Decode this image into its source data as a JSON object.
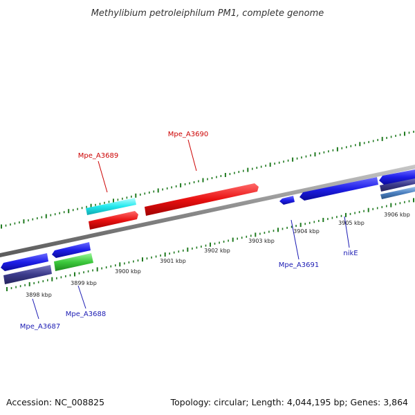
{
  "title": "Methylibium petroleiphilum PM1, complete genome",
  "footer": {
    "accession": "Accession: NC_008825",
    "summary": "Topology: circular; Length: 4,044,195 bp; Genes: 3,864"
  },
  "colors": {
    "backbone": "#8a8a8a",
    "tick": "#1f7a1f",
    "label_top": "#cc0000",
    "label_bottom": "#1a1ab3",
    "gene_red": "#e81010",
    "gene_cyan": "#22e8ee",
    "gene_blue": "#1e1ee8",
    "gene_green": "#3cc83c",
    "gene_slate": "#3b3a8a",
    "gene_steel": "#4a7fbf"
  },
  "scale": {
    "labels": [
      "3898 kbp",
      "3899 kbp",
      "3900 kbp",
      "3901 kbp",
      "3902 kbp",
      "3903 kbp",
      "3904 kbp",
      "3905 kbp",
      "3906 kbp"
    ]
  },
  "genes_top": [
    {
      "name": "Mpe_A3689"
    },
    {
      "name": "Mpe_A3690"
    }
  ],
  "genes_bottom": [
    {
      "name": "Mpe_A3687"
    },
    {
      "name": "Mpe_A3688"
    },
    {
      "name": "Mpe_A3691"
    },
    {
      "name": "nikE"
    }
  ]
}
